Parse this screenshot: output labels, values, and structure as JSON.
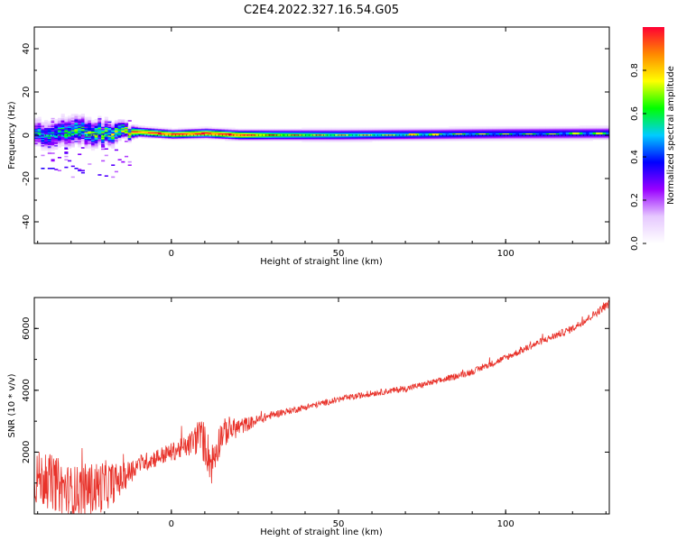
{
  "figure": {
    "title": "C2E4.2022.327.16.54.G05"
  },
  "chart_data": [
    {
      "type": "heatmap",
      "xlabel": "Height of straight line (km)",
      "ylabel": "Frequency (Hz)",
      "xlim": [
        -41,
        131
      ],
      "ylim": [
        -50,
        50
      ],
      "xticks": [
        0,
        50,
        100
      ],
      "yticks": [
        -40,
        -20,
        0,
        20,
        40
      ],
      "grid": false,
      "colorbar": {
        "label": "Normalized spectral amplitude",
        "range": [
          0.0,
          1.0
        ],
        "ticks": [
          0.0,
          0.2,
          0.4,
          0.6,
          0.8
        ],
        "colormap": [
          "#ffffff",
          "#e6c8ff",
          "#9900ff",
          "#0000ff",
          "#00ccff",
          "#00ff00",
          "#ffff00",
          "#ff8800",
          "#ff0033"
        ]
      },
      "ridge": [
        {
          "x": -41,
          "f": 0.6,
          "amp": 0.45,
          "spread": 3.2
        },
        {
          "x": -30,
          "f": 1.5,
          "amp": 0.55,
          "spread": 3.5
        },
        {
          "x": -20,
          "f": 1.0,
          "amp": 0.6,
          "spread": 3.0
        },
        {
          "x": -10,
          "f": 1.4,
          "amp": 0.8,
          "spread": 1.2
        },
        {
          "x": 0,
          "f": 0.3,
          "amp": 0.85,
          "spread": 1.1
        },
        {
          "x": 10,
          "f": 0.8,
          "amp": 0.85,
          "spread": 1.2
        },
        {
          "x": 20,
          "f": 0.0,
          "amp": 0.85,
          "spread": 1.2
        },
        {
          "x": 30,
          "f": 0.0,
          "amp": 0.65,
          "spread": 1.3
        },
        {
          "x": 50,
          "f": 0.0,
          "amp": 0.55,
          "spread": 1.4
        },
        {
          "x": 80,
          "f": 0.3,
          "amp": 0.45,
          "spread": 1.5
        },
        {
          "x": 100,
          "f": 0.6,
          "amp": 0.4,
          "spread": 1.6
        },
        {
          "x": 131,
          "f": 0.8,
          "amp": 0.4,
          "spread": 1.6
        }
      ]
    },
    {
      "type": "line",
      "xlabel": "Height of straight line (km)",
      "ylabel": "SNR (10 * v/v)",
      "xlim": [
        -41,
        131
      ],
      "ylim": [
        0,
        7000
      ],
      "xticks": [
        0,
        50,
        100
      ],
      "yticks": [
        2000,
        4000,
        6000
      ],
      "grid": false,
      "series": [
        {
          "color": "#e8322a",
          "x": [
            -41,
            -35,
            -30,
            -25,
            -20,
            -15,
            -10,
            -5,
            0,
            5,
            8,
            10,
            12,
            15,
            20,
            25,
            30,
            40,
            50,
            60,
            70,
            80,
            90,
            100,
            110,
            120,
            125,
            131
          ],
          "y": [
            1200,
            1000,
            700,
            800,
            900,
            1100,
            1600,
            1800,
            2000,
            2200,
            2500,
            2300,
            1600,
            2600,
            2800,
            3000,
            3200,
            3450,
            3700,
            3900,
            4050,
            4300,
            4600,
            5050,
            5550,
            6000,
            6350,
            6800
          ],
          "noise": [
            900,
            900,
            850,
            850,
            850,
            500,
            300,
            300,
            300,
            350,
            600,
            700,
            700,
            500,
            300,
            180,
            120,
            100,
            100,
            100,
            100,
            100,
            100,
            110,
            110,
            120,
            120,
            130
          ]
        }
      ]
    }
  ]
}
